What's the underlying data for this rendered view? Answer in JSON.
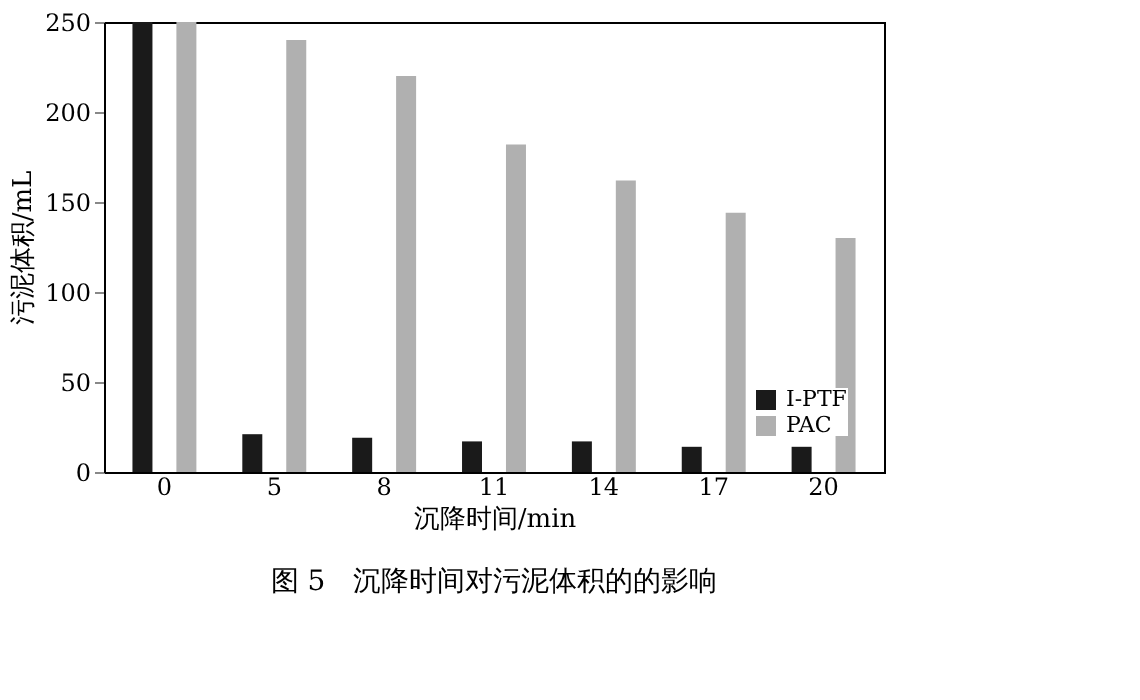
{
  "chart_data": {
    "type": "bar",
    "xlabel": "沉降时间/min",
    "ylabel": "污泥体积/mL",
    "categories": [
      "0",
      "5",
      "8",
      "11",
      "14",
      "17",
      "20"
    ],
    "series": [
      {
        "name": "I-PTF",
        "color": "#1a1a1a",
        "values": [
          250,
          21,
          19,
          17,
          17,
          14,
          14
        ]
      },
      {
        "name": "PAC",
        "color": "#b0b0b0",
        "values": [
          250,
          240,
          220,
          182,
          162,
          144,
          130
        ]
      }
    ],
    "ylim": [
      0,
      250
    ],
    "yticks": [
      0,
      50,
      100,
      150,
      200,
      250
    ],
    "grid": false,
    "legend": "bottom right",
    "annotations": [
      "图 5　沉降时间对污泥体积的的影响"
    ]
  }
}
